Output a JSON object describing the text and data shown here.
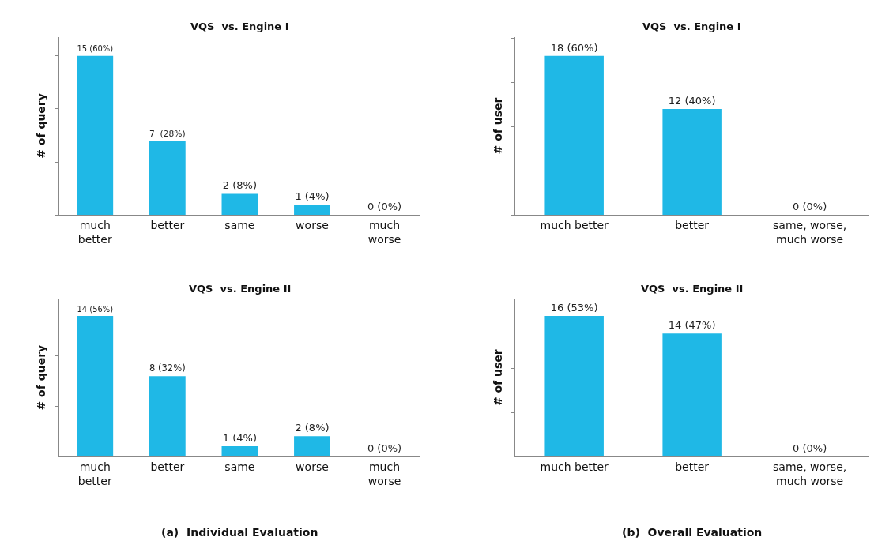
{
  "chart_data": [
    {
      "type": "bar",
      "title": "VQS  vs. Engine I",
      "ylabel": "# of query",
      "categories": [
        "much\nbetter",
        "better",
        "same",
        "worse",
        "much\nworse"
      ],
      "values": [
        15,
        7,
        2,
        1,
        0
      ],
      "value_labels": [
        "15 (60%)",
        "7  (28%)",
        "2 (8%)",
        "1 (4%)",
        "0 (0%)"
      ],
      "color": "#1fb8e6",
      "tick_labels": "x"
    },
    {
      "type": "bar",
      "title": "VQS  vs. Engine I",
      "ylabel": "# of user",
      "categories": [
        "much better",
        "better",
        "same, worse,\nmuch worse"
      ],
      "values": [
        18,
        12,
        0
      ],
      "value_labels": [
        "18 (60%)",
        "12 (40%)",
        "0 (0%)"
      ],
      "color": "#1fb8e6",
      "tick_labels": "x"
    },
    {
      "type": "bar",
      "title": "VQS  vs. Engine II",
      "ylabel": "# of query",
      "categories": [
        "much\nbetter",
        "better",
        "same",
        "worse",
        "much\nworse"
      ],
      "values": [
        14,
        8,
        1,
        2,
        0
      ],
      "value_labels": [
        "14 (56%)",
        "8 (32%)",
        "1 (4%)",
        "2 (8%)",
        "0 (0%)"
      ],
      "color": "#1fb8e6",
      "tick_labels": "x",
      "annotations": [
        "(a)  Individual Evaluation"
      ]
    },
    {
      "type": "bar",
      "title": "VQS  vs. Engine II",
      "ylabel": "# of user",
      "categories": [
        "much better",
        "better",
        "same, worse,\nmuch worse"
      ],
      "values": [
        16,
        14,
        0
      ],
      "value_labels": [
        "16 (53%)",
        "14 (47%)",
        "0 (0%)"
      ],
      "color": "#1fb8e6",
      "tick_labels": "x",
      "annotations": [
        "(b)  Overall Evaluation"
      ]
    }
  ]
}
